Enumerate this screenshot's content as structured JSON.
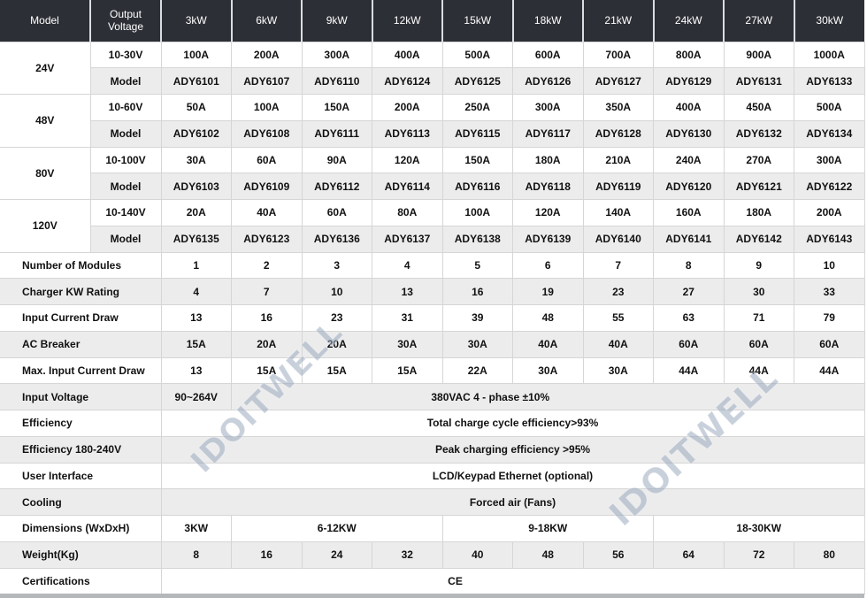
{
  "colors": {
    "header_bg": "#2d2f36",
    "header_text": "#ffffff",
    "row_stripe": "#ececec",
    "grid_line": "#d6d6d6",
    "body_text": "#111111",
    "watermark": "#9fb0c4",
    "bottom_bar": "#b4b8bb"
  },
  "watermark": {
    "text": "IDOITWELL"
  },
  "table": {
    "header": [
      "Model",
      "Output Voltage",
      "3kW",
      "6kW",
      "9kW",
      "12kW",
      "15kW",
      "18kW",
      "21kW",
      "24kW",
      "27kW",
      "30kW"
    ],
    "rows": [
      {
        "type": "group-first",
        "group": "24V",
        "label": "10-30V",
        "values": [
          "100A",
          "200A",
          "300A",
          "400A",
          "500A",
          "600A",
          "700A",
          "800A",
          "900A",
          "1000A"
        ]
      },
      {
        "type": "group-second",
        "label": "Model",
        "values": [
          "ADY6101",
          "ADY6107",
          "ADY6110",
          "ADY6124",
          "ADY6125",
          "ADY6126",
          "ADY6127",
          "ADY6129",
          "ADY6131",
          "ADY6133"
        ]
      },
      {
        "type": "group-first",
        "group": "48V",
        "label": "10-60V",
        "values": [
          "50A",
          "100A",
          "150A",
          "200A",
          "250A",
          "300A",
          "350A",
          "400A",
          "450A",
          "500A"
        ]
      },
      {
        "type": "group-second",
        "label": "Model",
        "values": [
          "ADY6102",
          "ADY6108",
          "ADY6111",
          "ADY6113",
          "ADY6115",
          "ADY6117",
          "ADY6128",
          "ADY6130",
          "ADY6132",
          "ADY6134"
        ]
      },
      {
        "type": "group-first",
        "group": "80V",
        "label": "10-100V",
        "values": [
          "30A",
          "60A",
          "90A",
          "120A",
          "150A",
          "180A",
          "210A",
          "240A",
          "270A",
          "300A"
        ]
      },
      {
        "type": "group-second",
        "label": "Model",
        "values": [
          "ADY6103",
          "ADY6109",
          "ADY6112",
          "ADY6114",
          "ADY6116",
          "ADY6118",
          "ADY6119",
          "ADY6120",
          "ADY6121",
          "ADY6122"
        ]
      },
      {
        "type": "group-first",
        "group": "120V",
        "label": "10-140V",
        "values": [
          "20A",
          "40A",
          "60A",
          "80A",
          "100A",
          "120A",
          "140A",
          "160A",
          "180A",
          "200A"
        ]
      },
      {
        "type": "group-second",
        "label": "Model",
        "values": [
          "ADY6135",
          "ADY6123",
          "ADY6136",
          "ADY6137",
          "ADY6138",
          "ADY6139",
          "ADY6140",
          "ADY6141",
          "ADY6142",
          "ADY6143"
        ]
      },
      {
        "type": "spec",
        "label": "Number of Modules",
        "values": [
          "1",
          "2",
          "3",
          "4",
          "5",
          "6",
          "7",
          "8",
          "9",
          "10"
        ]
      },
      {
        "type": "spec",
        "label": "Charger KW Rating",
        "values": [
          "4",
          "7",
          "10",
          "13",
          "16",
          "19",
          "23",
          "27",
          "30",
          "33"
        ]
      },
      {
        "type": "spec",
        "label": "Input Current Draw",
        "values": [
          "13",
          "16",
          "23",
          "31",
          "39",
          "48",
          "55",
          "63",
          "71",
          "79"
        ]
      },
      {
        "type": "spec",
        "label": "AC Breaker",
        "values": [
          "15A",
          "20A",
          "20A",
          "30A",
          "30A",
          "40A",
          "40A",
          "60A",
          "60A",
          "60A"
        ]
      },
      {
        "type": "spec",
        "label": "Max. Input Current Draw",
        "values": [
          "13",
          "15A",
          "15A",
          "15A",
          "22A",
          "30A",
          "30A",
          "44A",
          "44A",
          "44A"
        ]
      },
      {
        "type": "span",
        "label": "Input Voltage",
        "first": "90~264V",
        "text": "380VAC 4 - phase ±10%",
        "shift": true
      },
      {
        "type": "span",
        "label": "Efficiency",
        "text": "Total charge cycle efficiency>93%"
      },
      {
        "type": "span",
        "label": "Efficiency 180-240V",
        "text": "Peak charging efficiency >95%"
      },
      {
        "type": "span",
        "label": "User Interface",
        "text": "LCD/Keypad Ethernet (optional)"
      },
      {
        "type": "span",
        "label": "Cooling",
        "text": "Forced air (Fans)"
      },
      {
        "type": "multi",
        "label": "Dimensions (WxDxH)",
        "cells": [
          {
            "text": "3KW",
            "span": 1
          },
          {
            "text": "6-12KW",
            "span": 3
          },
          {
            "text": "9-18KW",
            "span": 3
          },
          {
            "text": "18-30KW",
            "span": 3
          }
        ]
      },
      {
        "type": "spec",
        "label": "Weight(Kg)",
        "values": [
          "8",
          "16",
          "24",
          "32",
          "40",
          "48",
          "56",
          "64",
          "72",
          "80"
        ]
      },
      {
        "type": "span",
        "label": "Certifications",
        "text": "CE",
        "shift": true
      }
    ]
  }
}
